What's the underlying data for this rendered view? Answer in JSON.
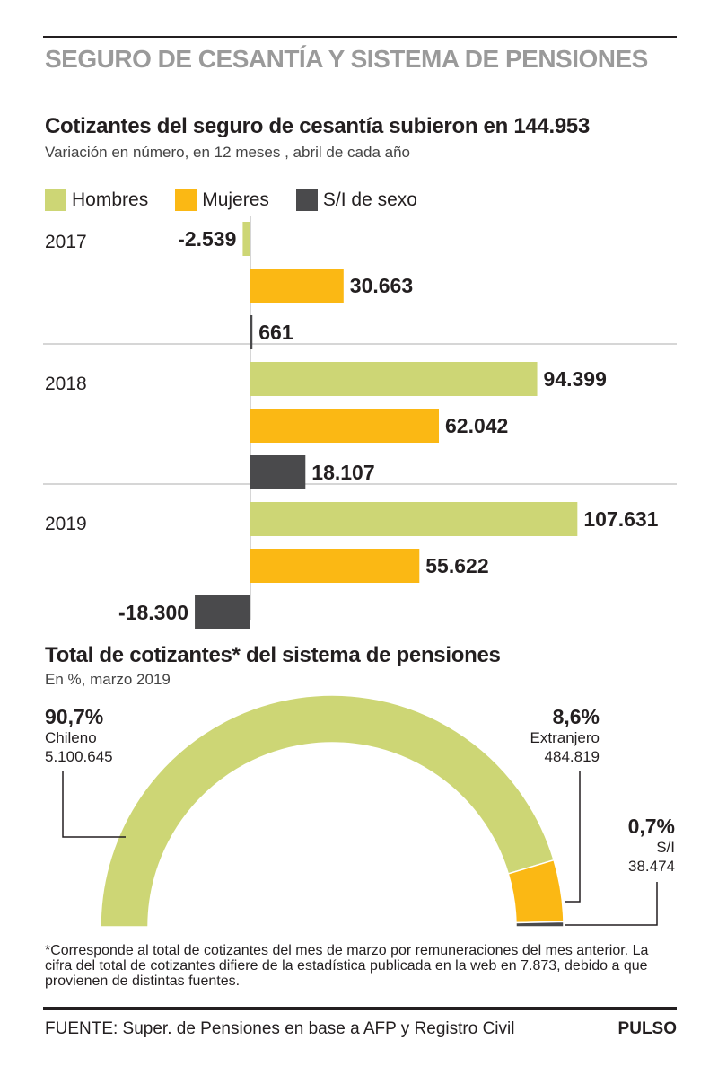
{
  "header": {
    "section_title": "SEGURO DE CESANTÍA Y SISTEMA DE PENSIONES"
  },
  "colors": {
    "hombres": "#cdd675",
    "mujeres": "#fbb814",
    "sexo": "#4a4a4c",
    "grid": "#c8c8c8"
  },
  "chart_data": [
    {
      "type": "bar",
      "orientation": "horizontal",
      "title": "Cotizantes del seguro de cesantía subieron en 144.953",
      "subtitle": "Variación en número, en 12 meses , abril de cada año",
      "categories": [
        "2017",
        "2018",
        "2019"
      ],
      "series": [
        {
          "name": "Hombres",
          "color": "#cdd675",
          "values": [
            -2539,
            94399,
            107631
          ],
          "labels": [
            "-2.539",
            "94.399",
            "107.631"
          ]
        },
        {
          "name": "Mujeres",
          "color": "#fbb814",
          "values": [
            30663,
            62042,
            55622
          ],
          "labels": [
            "30.663",
            "62.042",
            "55.622"
          ]
        },
        {
          "name": "S/I de sexo",
          "color": "#4a4a4c",
          "values": [
            661,
            18107,
            -18300
          ],
          "labels": [
            "661",
            "18.107",
            "-18.300"
          ]
        }
      ],
      "grid": false
    },
    {
      "type": "pie",
      "variant": "half-donut",
      "title": "Total de cotizantes* del sistema de pensiones",
      "subtitle": "En %, marzo 2019",
      "slices": [
        {
          "name": "Chileno",
          "percent_label": "90,7%",
          "value": 90.7,
          "count": "5.100.645",
          "color": "#cdd675"
        },
        {
          "name": "Extranjero",
          "percent_label": "8,6%",
          "value": 8.6,
          "count": "484.819",
          "color": "#fbb814"
        },
        {
          "name": "S/I",
          "percent_label": "0,7%",
          "value": 0.7,
          "count": "38.474",
          "color": "#4a4a4c"
        }
      ]
    }
  ],
  "footnote": "*Corresponde al total de cotizantes del mes de marzo por remuneraciones del mes anterior. La cifra del total de cotizantes difiere de la estadística publicada en la web en 7.873, debido a que provienen de distintas fuentes.",
  "footer": {
    "source": "FUENTE: Super. de Pensiones en base a AFP y Registro Civil",
    "brand": "PULSO"
  }
}
